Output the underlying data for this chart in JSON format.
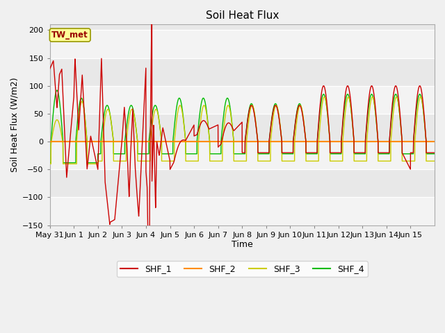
{
  "title": "Soil Heat Flux",
  "xlabel": "Time",
  "ylabel": "Soil Heat Flux (W/m2)",
  "ylim": [
    -150,
    210
  ],
  "yticks": [
    -150,
    -100,
    -50,
    0,
    50,
    100,
    150,
    200
  ],
  "fig_bg": "#f0f0f0",
  "plot_bg": "#e8e8e8",
  "grid_color": "#ffffff",
  "tw_met_label": "TW_met",
  "tw_met_bg": "#ffff99",
  "tw_met_border": "#999900",
  "tw_met_text_color": "#990000",
  "series_colors": {
    "SHF_1": "#cc0000",
    "SHF_2": "#ff8c00",
    "SHF_3": "#cccc00",
    "SHF_4": "#00bb00"
  },
  "xtick_labels": [
    "May 31",
    "Jun 1",
    "Jun 2",
    "Jun 3",
    "Jun 4",
    "Jun 5",
    "Jun 6",
    "Jun 7",
    "Jun 8",
    "Jun 9",
    "Jun 10",
    "Jun 11",
    "Jun 12",
    "Jun 13",
    "Jun 14",
    "Jun 15"
  ],
  "n_days": 16,
  "points_per_day": 288
}
